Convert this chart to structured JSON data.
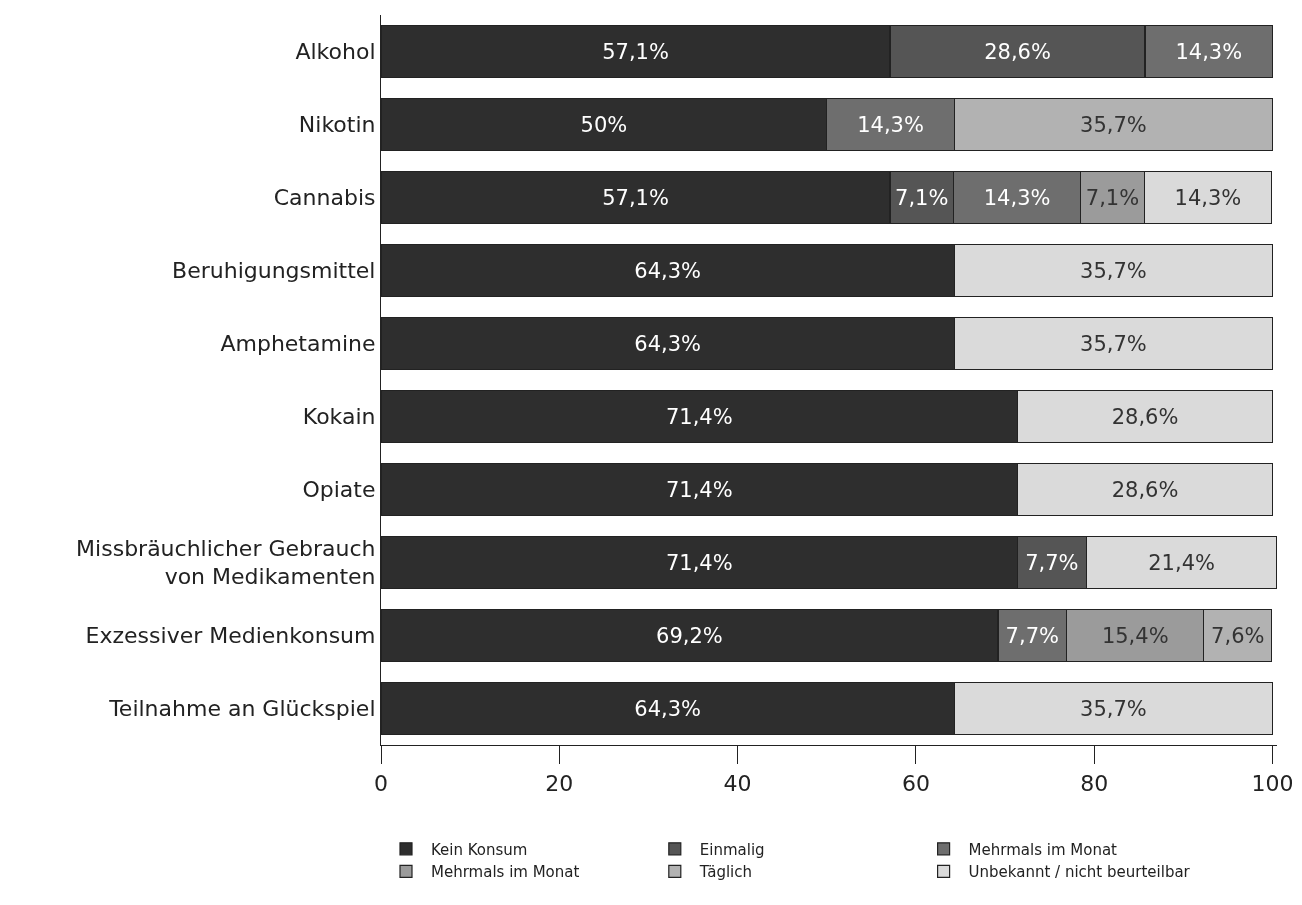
{
  "chart_data": {
    "type": "bar",
    "orientation": "horizontal",
    "stacked": true,
    "categories": [
      "Alkohol",
      "Nikotin",
      "Cannabis",
      "Beruhigungsmittel",
      "Amphetamine",
      "Kokain",
      "Opiate",
      "Missbräuchlicher Gebrauch\nvon Medikamenten",
      "Exzessiver Medienkonsum",
      "Teilnahme an Glückspiel"
    ],
    "series": [
      {
        "name": "Kein Konsum",
        "color": "#2e2e2e",
        "values": [
          57.1,
          50,
          57.1,
          64.3,
          64.3,
          71.4,
          71.4,
          71.4,
          69.2,
          64.3
        ],
        "value_labels": [
          "57,1%",
          "50%",
          "57,1%",
          "64,3%",
          "64,3%",
          "71,4%",
          "71,4%",
          "71,4%",
          "69,2%",
          "64,3%"
        ]
      },
      {
        "name": "Einmalig",
        "color": "#555555",
        "values": [
          28.6,
          null,
          7.1,
          null,
          null,
          null,
          null,
          7.7,
          null,
          null
        ],
        "value_labels": [
          "28,6%",
          null,
          "7,1%",
          null,
          null,
          null,
          null,
          "7,7%",
          null,
          null
        ]
      },
      {
        "name": "Mehrmals im Monat",
        "color": "#6e6e6e",
        "values": [
          14.3,
          14.3,
          14.3,
          null,
          null,
          null,
          null,
          null,
          7.7,
          null
        ],
        "value_labels": [
          "14,3%",
          "14,3%",
          "14,3%",
          null,
          null,
          null,
          null,
          null,
          "7,7%",
          null
        ]
      },
      {
        "name": "Mehrmals im Monat",
        "color": "#9b9b9b",
        "values": [
          null,
          null,
          7.1,
          null,
          null,
          null,
          null,
          null,
          15.4,
          null
        ],
        "value_labels": [
          null,
          null,
          "7,1%",
          null,
          null,
          null,
          null,
          null,
          "15,4%",
          null
        ]
      },
      {
        "name": "Täglich",
        "color": "#b2b2b2",
        "values": [
          null,
          35.7,
          null,
          null,
          null,
          null,
          null,
          null,
          7.6,
          null
        ],
        "value_labels": [
          null,
          "35,7%",
          null,
          null,
          null,
          null,
          null,
          null,
          "7,6%",
          null
        ]
      },
      {
        "name": "Unbekannt / nicht beurteilbar",
        "color": "#dadada",
        "values": [
          null,
          null,
          14.3,
          35.7,
          35.7,
          28.6,
          28.6,
          21.4,
          null,
          35.7
        ],
        "value_labels": [
          null,
          null,
          "14,3%",
          "35,7%",
          "35,7%",
          "28,6%",
          "28,6%",
          "21,4%",
          null,
          "35,7%"
        ]
      }
    ],
    "xlim": [
      0,
      100.5
    ],
    "xticks": [
      0,
      20,
      40,
      60,
      80,
      100
    ],
    "grid": false,
    "legend": "bottom"
  }
}
